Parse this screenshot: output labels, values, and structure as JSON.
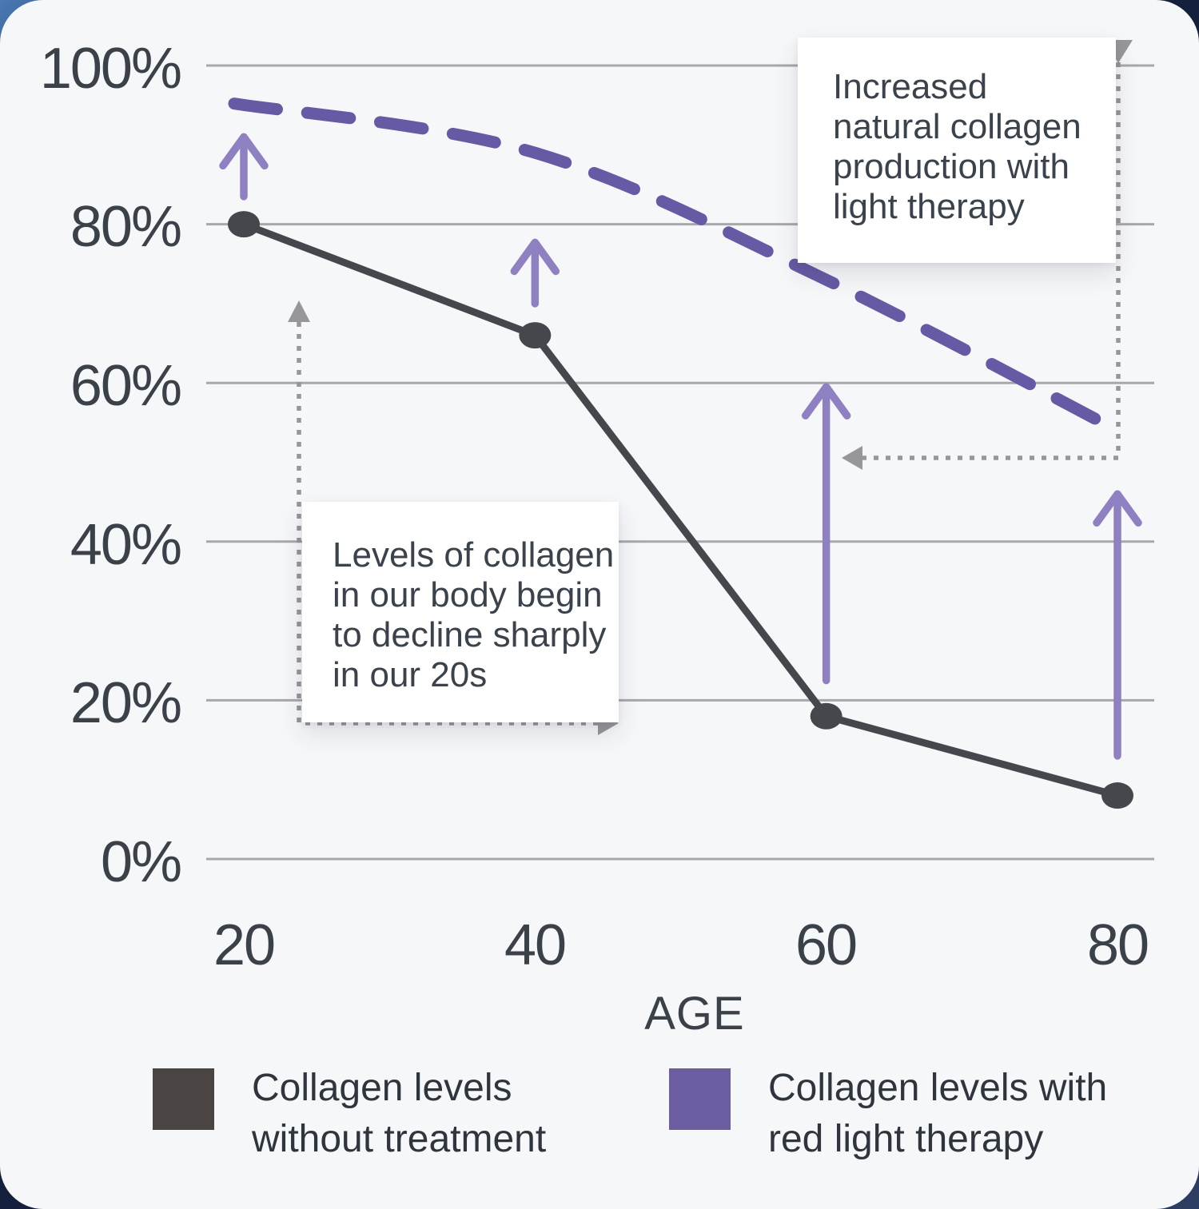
{
  "card": {
    "background": "#f6f7f9",
    "page_background": "#1b2a4a"
  },
  "chart_data": {
    "type": "line",
    "x": [
      20,
      40,
      60,
      80
    ],
    "x_labels": [
      "20",
      "40",
      "60",
      "80"
    ],
    "xlabel": "AGE",
    "y_ticks": [
      "100%",
      "80%",
      "60%",
      "40%",
      "20%",
      "0%"
    ],
    "y_tick_values": [
      100,
      80,
      60,
      40,
      20,
      0
    ],
    "ylim": [
      0,
      100
    ],
    "grid": true,
    "grid_color": "#a8a8ac",
    "legend_position": "bottom",
    "series": [
      {
        "name": "Collagen levels without treatment",
        "style": "solid",
        "color": "#44484d",
        "values": [
          80,
          66,
          18,
          8
        ]
      },
      {
        "name": "Collagen levels with red light therapy",
        "style": "dashed",
        "color": "#665aa5",
        "values": [
          95,
          89,
          73,
          54
        ]
      }
    ],
    "boost_arrows": [
      {
        "x": 20,
        "from_pct": 83.5,
        "to_pct": 91.0
      },
      {
        "x": 40,
        "from_pct": 70.0,
        "to_pct": 77.7
      },
      {
        "x": 60,
        "from_pct": 22.5,
        "to_pct": 59.5
      },
      {
        "x": 80,
        "from_pct": 13.0,
        "to_pct": 46.0
      }
    ],
    "arrow_color": "#8f80c1",
    "connector_color": "#97979a"
  },
  "annotations": {
    "top_right": {
      "text": "Increased\nnatural collagen\nproduction with\nlight therapy"
    },
    "left": {
      "text": "Levels of collagen\nin our body begin\nto decline sharply\nin our 20s"
    }
  },
  "legend": {
    "items": [
      {
        "label": "Collagen levels\nwithout treatment",
        "color": "#4a4542"
      },
      {
        "label": "Collagen levels with\nred light therapy",
        "color": "#6c5da1"
      }
    ]
  }
}
